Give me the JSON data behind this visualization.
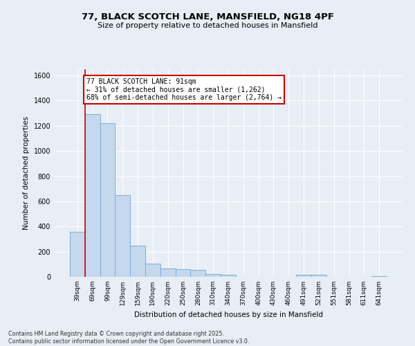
{
  "title_line1": "77, BLACK SCOTCH LANE, MANSFIELD, NG18 4PF",
  "title_line2": "Size of property relative to detached houses in Mansfield",
  "xlabel": "Distribution of detached houses by size in Mansfield",
  "ylabel": "Number of detached properties",
  "categories": [
    "39sqm",
    "69sqm",
    "99sqm",
    "129sqm",
    "159sqm",
    "190sqm",
    "220sqm",
    "250sqm",
    "280sqm",
    "310sqm",
    "340sqm",
    "370sqm",
    "400sqm",
    "430sqm",
    "460sqm",
    "491sqm",
    "521sqm",
    "551sqm",
    "581sqm",
    "611sqm",
    "641sqm"
  ],
  "values": [
    360,
    1290,
    1220,
    650,
    250,
    105,
    65,
    60,
    55,
    20,
    15,
    0,
    0,
    0,
    0,
    15,
    15,
    0,
    0,
    0,
    5
  ],
  "bar_color": "#c5d8ee",
  "bar_edge_color": "#7aadd4",
  "property_line_x": 0.5,
  "annotation_title": "77 BLACK SCOTCH LANE: 91sqm",
  "annotation_line1": "← 31% of detached houses are smaller (1,262)",
  "annotation_line2": "68% of semi-detached houses are larger (2,764) →",
  "annotation_box_color": "#ffffff",
  "annotation_box_edge": "#cc0000",
  "red_line_color": "#cc0000",
  "ylim": [
    0,
    1650
  ],
  "yticks": [
    0,
    200,
    400,
    600,
    800,
    1000,
    1200,
    1400,
    1600
  ],
  "background_color": "#e8eef5",
  "grid_color": "#ffffff",
  "footer_line1": "Contains HM Land Registry data © Crown copyright and database right 2025.",
  "footer_line2": "Contains public sector information licensed under the Open Government Licence v3.0."
}
